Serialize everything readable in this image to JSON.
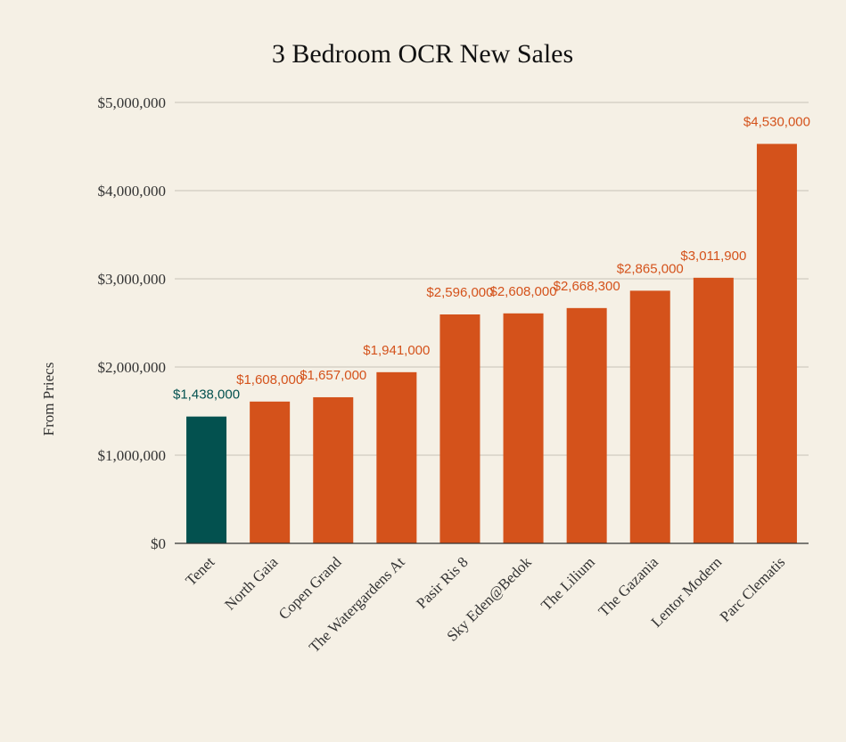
{
  "chart_data": {
    "type": "bar",
    "title": "3 Bedroom OCR New Sales",
    "xlabel": "",
    "ylabel": "From Priecs",
    "ylim": [
      0,
      5000000
    ],
    "yticks": [
      0,
      1000000,
      2000000,
      3000000,
      4000000,
      5000000
    ],
    "ytick_labels": [
      "$0",
      "$1,000,000",
      "$2,000,000",
      "$3,000,000",
      "$4,000,000",
      "$5,000,000"
    ],
    "grid": true,
    "categories": [
      "Tenet",
      "North Gaia",
      "Copen Grand",
      "The Watergardens At",
      "Pasir Ris 8",
      "Sky Eden@Bedok",
      "The Lilium",
      "The Gazania",
      "Lentor Modern",
      "Parc Clematis"
    ],
    "values": [
      1438000,
      1608000,
      1657000,
      1941000,
      2596000,
      2608000,
      2668300,
      2865000,
      3011900,
      4530000
    ],
    "data_labels": [
      "$1,438,000",
      "$1,608,000",
      "$1,657,000",
      "$1,941,000",
      "$2,596,000",
      "$2,608,000",
      "$2,668,300",
      "$2,865,000",
      "$3,011,900",
      "$4,530,000"
    ],
    "colors": {
      "highlight": "#03514f",
      "default": "#d4521b",
      "grid": "#c8c2b6",
      "axis": "#333333",
      "background": "#f5f0e5"
    },
    "highlight_category": "Tenet"
  }
}
